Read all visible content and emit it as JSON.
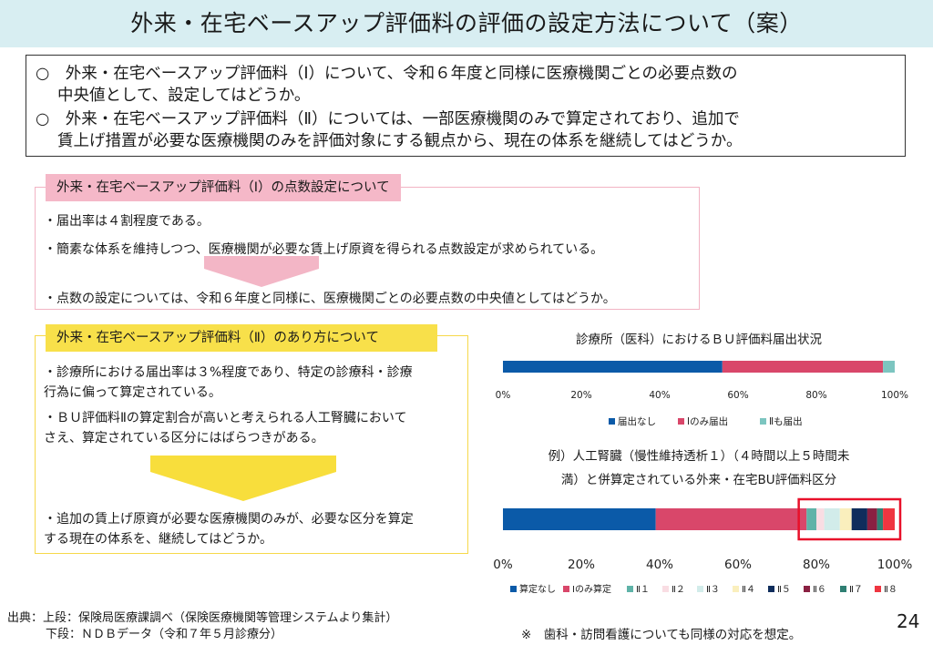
{
  "title": "外来・在宅ベースアップ評価料の評価の設定方法について（案）",
  "summary": [
    "○　外来・在宅ベースアップ評価料（Ⅰ）について、令和６年度と同様に医療機関ごとの必要点数の",
    "中央値として、設定してはどうか。",
    "○　外来・在宅ベースアップ評価料（Ⅱ）については、一部医療機関のみで算定されており、追加で",
    "賃上げ措置が必要な医療機関のみを評価対象にする観点から、現在の体系を継続してはどうか。"
  ],
  "panel1": {
    "header": "外来・在宅ベースアップ評価料（Ⅰ）の点数設定について",
    "bullets": [
      "・届出率は４割程度である。",
      "・簡素な体系を維持しつつ、医療機関が必要な賃上げ原資を得られる点数設定が求められている。"
    ],
    "conclusion": "・点数の設定については、令和６年度と同様に、医療機関ごとの必要点数の中央値としてはどうか。"
  },
  "panel2": {
    "header": "外来・在宅ベースアップ評価料（Ⅱ）のあり方について",
    "bullet1": [
      "・診療所における届出率は３%程度であり、特定の診療科・診療",
      "行為に偏って算定されている。"
    ],
    "bullet2": [
      "・ＢＵ評価料Ⅱの算定割合が高いと考えられる人工腎臓において",
      "さえ、算定されている区分にはばらつきがある。"
    ],
    "conclusion": [
      "・追加の賃上げ原資が必要な医療機関のみが、必要な区分を算定",
      "する現在の体系を、継続してはどうか。"
    ]
  },
  "chart_data": [
    {
      "type": "bar",
      "orientation": "horizontal-stacked",
      "title": "診療所（医科）におけるＢＵ評価料届出状況",
      "xlim": [
        0,
        100
      ],
      "ticks": [
        "0%",
        "20%",
        "40%",
        "60%",
        "80%",
        "100%"
      ],
      "series": [
        {
          "name": "届出なし",
          "values": [
            56
          ],
          "color": "#0b5aa8"
        },
        {
          "name": "Ⅰのみ届出",
          "values": [
            41
          ],
          "color": "#d9476a"
        },
        {
          "name": "Ⅱも届出",
          "values": [
            3
          ],
          "color": "#7cc5c0"
        }
      ],
      "legend": "bottom"
    },
    {
      "type": "bar",
      "orientation": "horizontal-stacked",
      "title_lines": [
        "例）人工腎臓（慢性維持透析１）（４時間以上５時間未",
        "満）と併算定されている外来・在宅BU評価料区分"
      ],
      "xlim": [
        0,
        100
      ],
      "ticks": [
        "0%",
        "20%",
        "40%",
        "60%",
        "80%",
        "100%"
      ],
      "series": [
        {
          "name": "算定なし",
          "values": [
            39
          ],
          "color": "#0b5aa8"
        },
        {
          "name": "Ⅰのみ算定",
          "values": [
            38.5
          ],
          "color": "#d9476a"
        },
        {
          "name": "Ⅱ１",
          "values": [
            2.5
          ],
          "color": "#5fb3a8"
        },
        {
          "name": "Ⅱ２",
          "values": [
            2
          ],
          "color": "#f9dde3"
        },
        {
          "name": "Ⅱ３",
          "values": [
            4
          ],
          "color": "#d2ecea"
        },
        {
          "name": "Ⅱ４",
          "values": [
            3
          ],
          "color": "#faefbd"
        },
        {
          "name": "Ⅱ５",
          "values": [
            4
          ],
          "color": "#0f2d5c"
        },
        {
          "name": "Ⅱ６",
          "values": [
            2.5
          ],
          "color": "#8a2042"
        },
        {
          "name": "Ⅱ７",
          "values": [
            1.5
          ],
          "color": "#2f7f73"
        },
        {
          "name": "Ⅱ８",
          "values": [
            3
          ],
          "color": "#ef3540"
        }
      ],
      "highlight_box": "80-100%",
      "legend": "bottom"
    }
  ],
  "footer": {
    "source_line1": "出典：上段：保険局医療課調べ（保険医療機関等管理システムより集計）",
    "source_line2": "下段：ＮＤＢデータ（令和７年５月診療分）",
    "note": "※　歯科・訪問看護についても同様の対応を想定。",
    "page": "24"
  }
}
